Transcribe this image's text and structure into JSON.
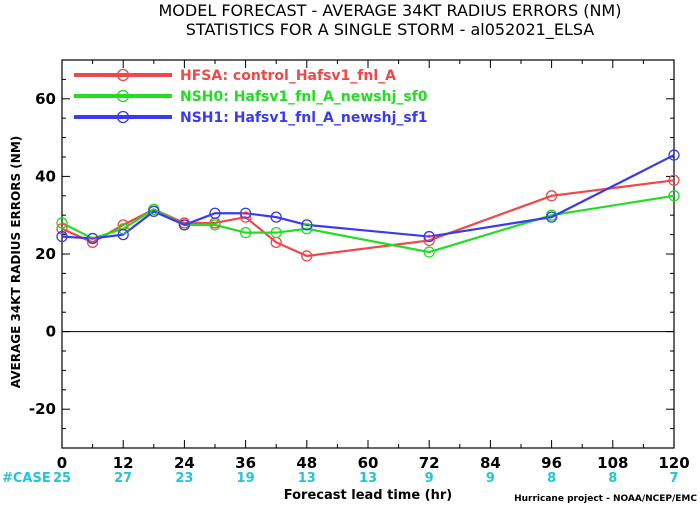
{
  "chart_data": {
    "type": "line",
    "title": "MODEL FORECAST - AVERAGE 34KT RADIUS ERRORS (NM)",
    "subtitle": "STATISTICS FOR A SINGLE STORM - al052021_ELSA",
    "xlabel": "Forecast lead time (hr)",
    "ylabel": "AVERAGE 34KT RADIUS ERRORS (NM)",
    "xlim": [
      0,
      120
    ],
    "ylim": [
      -30,
      70
    ],
    "x_ticks": [
      0,
      12,
      24,
      36,
      48,
      60,
      72,
      84,
      96,
      108,
      120
    ],
    "y_ticks": [
      -20,
      0,
      20,
      40,
      60
    ],
    "x_tick_labels": [
      "0",
      "12",
      "24",
      "36",
      "48",
      "60",
      "72",
      "84",
      "96",
      "108",
      "120"
    ],
    "y_tick_labels": [
      "-20",
      "0",
      "20",
      "40",
      "60"
    ],
    "zero_line": true,
    "legend_placement": "top-left",
    "series": [
      {
        "name": "HFSA: control_Hafsv1_fnl_A",
        "color": "#f04848",
        "x": [
          0,
          6,
          12,
          18,
          24,
          30,
          36,
          42,
          48,
          72,
          96,
          120
        ],
        "y": [
          26.5,
          23,
          27.5,
          31.5,
          28,
          28,
          29.5,
          23,
          19.5,
          23.5,
          35,
          39
        ]
      },
      {
        "name": "NSH0: Hafsv1_fnl_A_newshj_sf0",
        "color": "#22dd22",
        "x": [
          0,
          6,
          12,
          18,
          24,
          30,
          36,
          42,
          48,
          72,
          96,
          120
        ],
        "y": [
          28,
          24,
          26.5,
          31.5,
          27.5,
          27.5,
          25.5,
          25.5,
          26.5,
          20.5,
          30,
          35
        ]
      },
      {
        "name": "NSH1: Hafsv1_fnl_A_newshj_sf1",
        "color": "#3a3af0",
        "x": [
          0,
          6,
          12,
          18,
          24,
          30,
          36,
          42,
          48,
          72,
          96,
          120
        ],
        "y": [
          24.5,
          24,
          25,
          31,
          27.5,
          30.5,
          30.5,
          29.5,
          27.5,
          24.5,
          29.5,
          45.5
        ]
      }
    ],
    "cases": {
      "label": "#CASE",
      "x": [
        0,
        12,
        24,
        36,
        48,
        60,
        72,
        84,
        96,
        108,
        120
      ],
      "values": [
        "25",
        "27",
        "23",
        "19",
        "13",
        "13",
        "9",
        "9",
        "8",
        "8",
        "7"
      ]
    },
    "credit": "Hurricane project - NOAA/NCEP/EMC"
  }
}
